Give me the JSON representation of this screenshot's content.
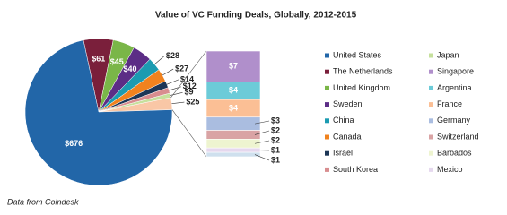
{
  "chart_data": {
    "type": "pie",
    "title": "Value of VC Funding Deals, Globally, 2012-2015",
    "source": "Data from Coindesk",
    "categories": [
      "The Netherlands",
      "United Kingdom",
      "Sweden",
      "China",
      "Canada",
      "Israel",
      "South Korea",
      "Japan",
      null,
      "United States"
    ],
    "values": [
      61,
      45,
      40,
      28,
      27,
      14,
      12,
      9,
      25,
      676
    ],
    "value_labels": [
      "$61",
      "$45",
      "$40",
      "$28",
      "$27",
      "$14",
      "$12",
      "$9",
      "$25",
      "$676"
    ],
    "colors": [
      "#7a1f3b",
      "#7ab648",
      "#5c2d86",
      "#1b9bb1",
      "#f0821e",
      "#1c3656",
      "#d88d8f",
      "#c6e09c",
      "#f9c7a6",
      "#2266a8"
    ],
    "breakout": {
      "type": "bar",
      "categories": [
        "Singapore",
        "Argentina",
        "France",
        "Germany",
        "Switzerland",
        "Barbados",
        "Mexico",
        null
      ],
      "values": [
        7,
        4,
        4,
        3,
        2,
        2,
        1,
        1
      ],
      "value_labels": [
        "$7",
        "$4",
        "$4",
        "$3",
        "$2",
        "$2",
        "$1",
        "$1"
      ],
      "colors": [
        "#b08fcb",
        "#6ccbd8",
        "#fbbf95",
        "#aabde0",
        "#d9a3a4",
        "#eef4d0",
        "#e5d8ee",
        "#cfe0ee"
      ]
    }
  }
}
